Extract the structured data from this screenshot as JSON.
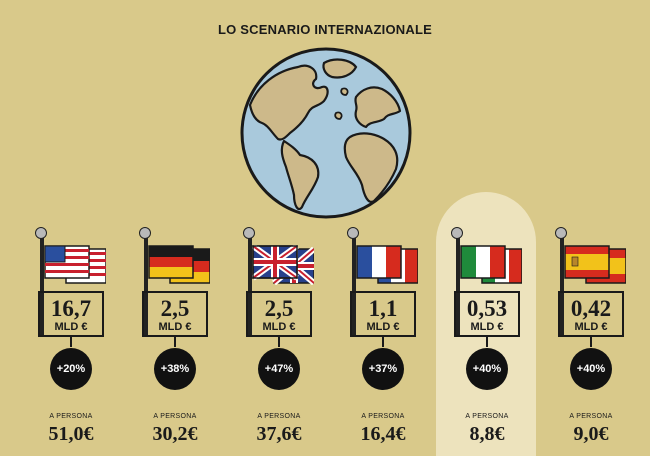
{
  "title": "LO SCENARIO INTERNAZIONALE",
  "colors": {
    "background": "#d9c98a",
    "highlight": "#ede3bd",
    "ocean": "#a9c9dc",
    "land": "#cdb98a"
  },
  "countries": [
    {
      "flag": "usa-flag-icon",
      "value": "16,7",
      "unit": "MLD €",
      "change": "+20%",
      "per_label": "A PERSONA",
      "per_person": "51,0€"
    },
    {
      "flag": "germany-flag-icon",
      "value": "2,5",
      "unit": "MLD €",
      "change": "+38%",
      "per_label": "A PERSONA",
      "per_person": "30,2€"
    },
    {
      "flag": "uk-flag-icon",
      "value": "2,5",
      "unit": "MLD €",
      "change": "+47%",
      "per_label": "A PERSONA",
      "per_person": "37,6€"
    },
    {
      "flag": "france-flag-icon",
      "value": "1,1",
      "unit": "MLD €",
      "change": "+37%",
      "per_label": "A PERSONA",
      "per_person": "16,4€"
    },
    {
      "flag": "italy-flag-icon",
      "value": "0,53",
      "unit": "MLD €",
      "change": "+40%",
      "per_label": "A PERSONA",
      "per_person": "8,8€"
    },
    {
      "flag": "spain-flag-icon",
      "value": "0,42",
      "unit": "MLD €",
      "change": "+40%",
      "per_label": "A PERSONA",
      "per_person": "9,0€"
    }
  ]
}
